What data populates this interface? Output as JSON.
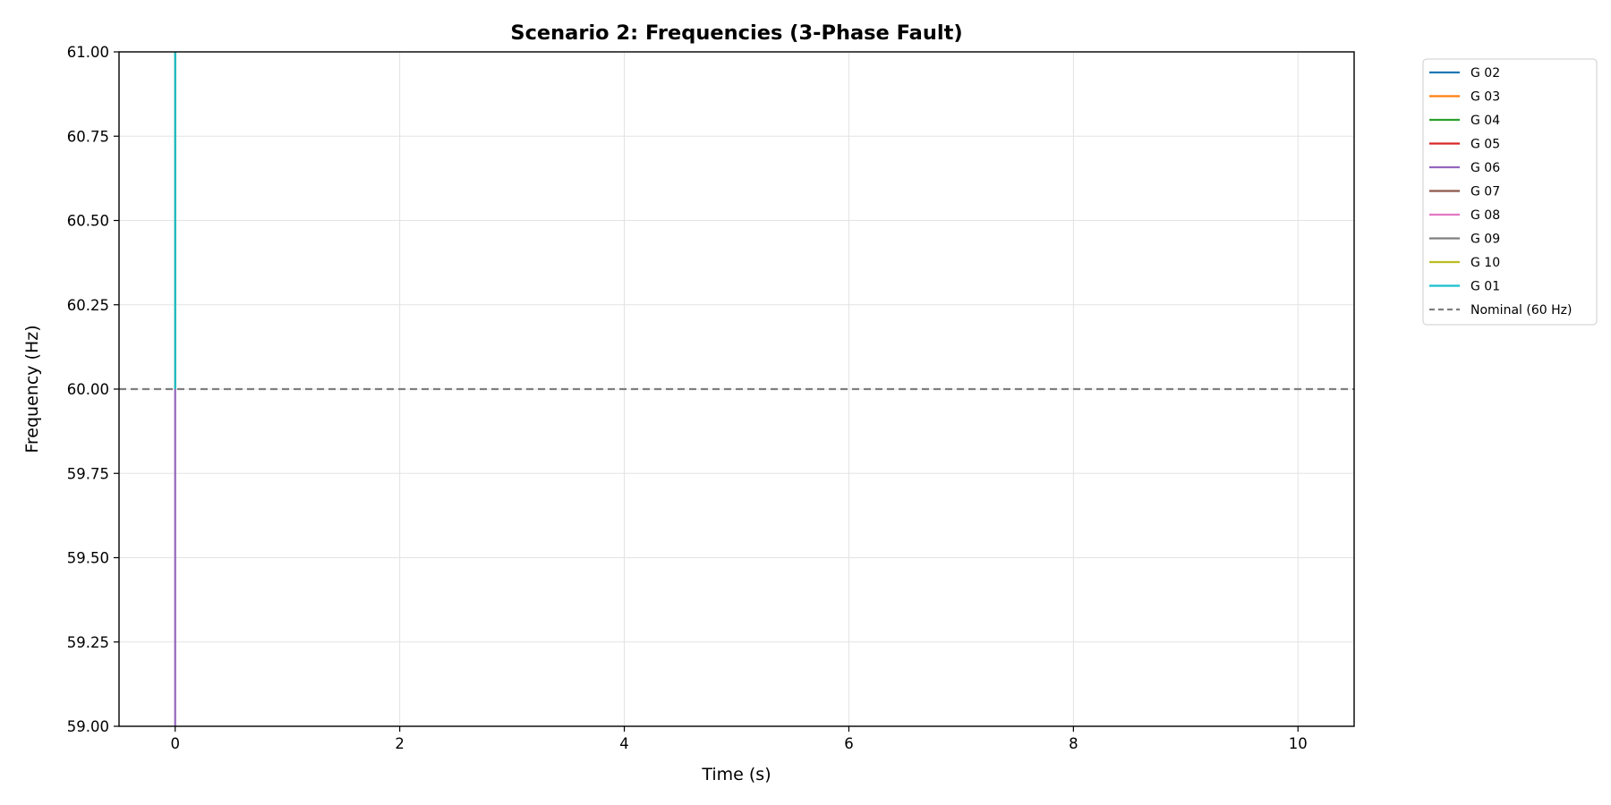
{
  "chart_data": {
    "type": "line",
    "title": "Scenario 2: Frequencies (3-Phase Fault)",
    "xlabel": "Time (s)",
    "ylabel": "Frequency (Hz)",
    "xlim": [
      -0.5,
      10.5
    ],
    "ylim": [
      59.0,
      61.0
    ],
    "xticks": [
      0,
      2,
      4,
      6,
      8,
      10
    ],
    "xtick_labels": [
      "0",
      "2",
      "4",
      "6",
      "8",
      "10"
    ],
    "yticks": [
      59.0,
      59.25,
      59.5,
      59.75,
      60.0,
      60.25,
      60.5,
      60.75,
      61.0
    ],
    "ytick_labels": [
      "59.00",
      "59.25",
      "59.50",
      "59.75",
      "60.00",
      "60.25",
      "60.50",
      "60.75",
      "61.00"
    ],
    "grid": true,
    "legend_position": "outside-top-right",
    "series": [
      {
        "name": "G 02",
        "color": "#1f77b4",
        "x": [
          0,
          0
        ],
        "y": [
          60.0,
          61.0
        ]
      },
      {
        "name": "G 03",
        "color": "#ff7f0e",
        "x": [
          0,
          0
        ],
        "y": [
          60.0,
          61.0
        ]
      },
      {
        "name": "G 04",
        "color": "#2ca02c",
        "x": [
          0,
          0
        ],
        "y": [
          60.0,
          61.0
        ]
      },
      {
        "name": "G 05",
        "color": "#d62728",
        "x": [
          0,
          0
        ],
        "y": [
          60.0,
          61.0
        ]
      },
      {
        "name": "G 06",
        "color": "#9467bd",
        "x": [
          0,
          0
        ],
        "y": [
          59.0,
          60.0
        ]
      },
      {
        "name": "G 07",
        "color": "#8c564b",
        "x": [
          0,
          0
        ],
        "y": [
          60.0,
          61.0
        ]
      },
      {
        "name": "G 08",
        "color": "#e377c2",
        "x": [
          0,
          0
        ],
        "y": [
          60.0,
          61.0
        ]
      },
      {
        "name": "G 09",
        "color": "#7f7f7f",
        "x": [
          0,
          0
        ],
        "y": [
          60.0,
          61.0
        ]
      },
      {
        "name": "G 10",
        "color": "#bcbd22",
        "x": [
          0,
          0
        ],
        "y": [
          60.0,
          61.0
        ]
      },
      {
        "name": "G 01",
        "color": "#17becf",
        "x": [
          0,
          0
        ],
        "y": [
          60.0,
          61.0
        ]
      }
    ],
    "reference_line": {
      "name": "Nominal (60 Hz)",
      "y": 60.0,
      "color": "#7f7f7f",
      "style": "dashed"
    }
  }
}
